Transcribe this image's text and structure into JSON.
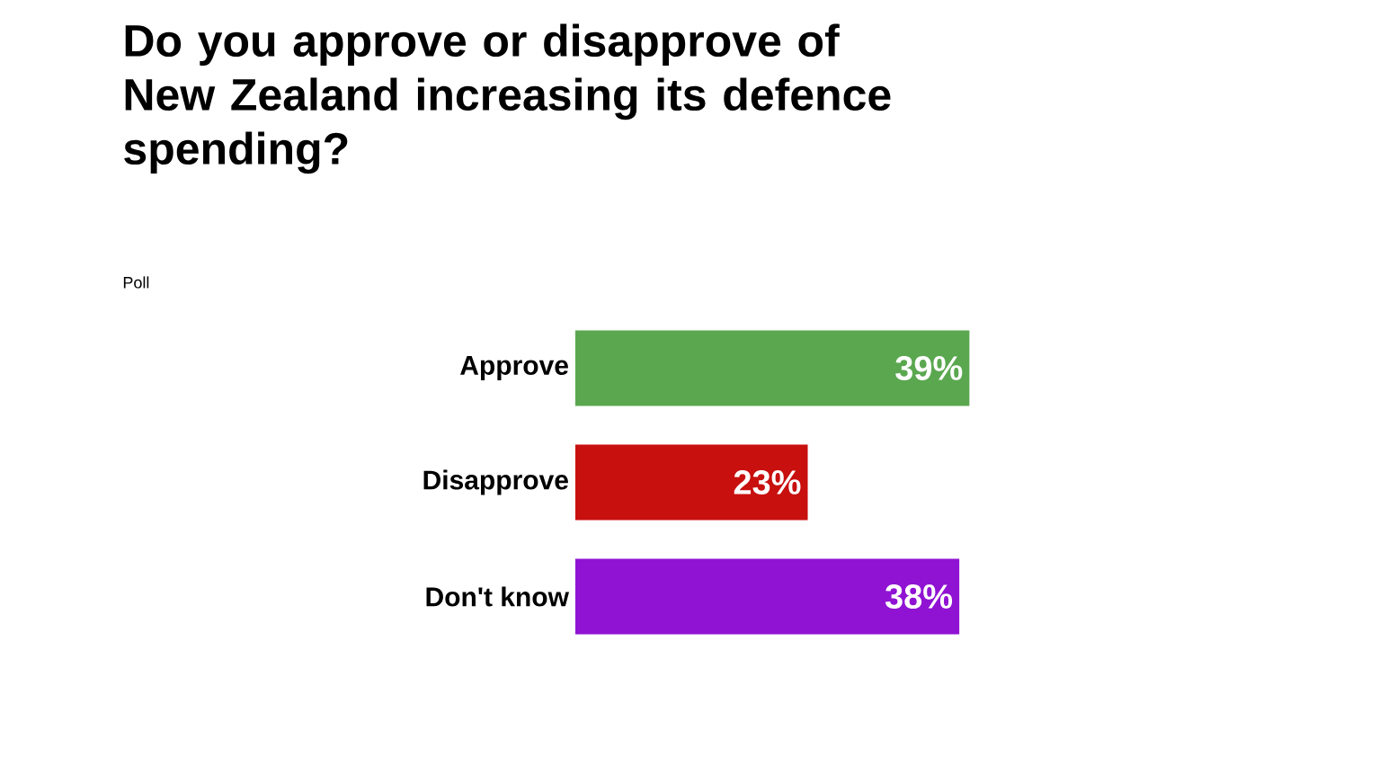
{
  "chart_data": {
    "type": "bar",
    "orientation": "horizontal",
    "title": "Do you approve or disapprove of New Zealand increasing its defence spending?",
    "annotations": [
      "Poll"
    ],
    "categories": [
      "Approve",
      "Disapprove",
      "Don't know"
    ],
    "values": [
      39,
      23,
      38
    ],
    "colors": [
      "#5aa74f",
      "#c8100f",
      "#9013d3"
    ],
    "value_labels": [
      "39%",
      "23%",
      "38%"
    ]
  }
}
